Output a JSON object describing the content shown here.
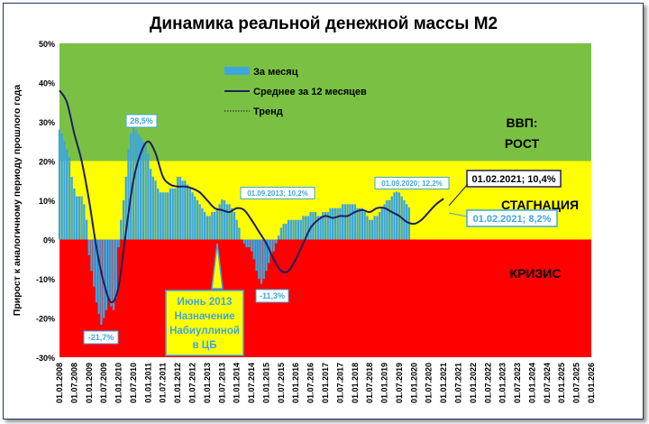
{
  "chart_data": {
    "type": "bar",
    "title": "Динамика реальной денежной массы М2",
    "ylabel": "Прирост к аналогичному периоду прошлого года",
    "xlabel": "",
    "ylim": [
      -30,
      50
    ],
    "yticks": [
      "-30%",
      "-20%",
      "-10%",
      "0%",
      "10%",
      "20%",
      "30%",
      "40%",
      "50%"
    ],
    "xticks": [
      "01.01.2008",
      "01.07.2008",
      "01.01.2009",
      "01.07.2009",
      "01.01.2010",
      "01.07.2010",
      "01.01.2011",
      "01.07.2011",
      "01.01.2012",
      "01.07.2012",
      "01.01.2013",
      "01.07.2013",
      "01.01.2014",
      "01.07.2014",
      "01.01.2015",
      "01.07.2015",
      "01.01.2016",
      "01.07.2016",
      "01.01.2017",
      "01.07.2017",
      "01.01.2018",
      "01.07.2018",
      "01.01.2019",
      "01.07.2019",
      "01.01.2020",
      "01.07.2020",
      "01.01.2021",
      "01.07.2021",
      "01.01.2022",
      "01.07.2022",
      "01.01.2023",
      "01.07.2023",
      "01.01.2024",
      "01.07.2024",
      "01.01.2025",
      "01.07.2025",
      "01.01.2026"
    ],
    "zones": [
      {
        "label": "ВВП:\nРОСТ",
        "from": 20,
        "to": 50,
        "color": "#7ac143"
      },
      {
        "label": "СТАГНАЦИЯ",
        "from": 0,
        "to": 20,
        "color": "#ffff00"
      },
      {
        "label": "КРИЗИС",
        "from": -30,
        "to": 0,
        "color": "#ff0000"
      }
    ],
    "series": [
      {
        "name": "За месяц",
        "kind": "bar",
        "color": "#3ea6dc",
        "start": "2008-01",
        "values": [
          28,
          27,
          25,
          23,
          21,
          16,
          13,
          11,
          11,
          11,
          9,
          5,
          -4,
          -8,
          -12,
          -16,
          -19,
          -21.7,
          -20,
          -18,
          -15,
          -17,
          -18,
          -15,
          -2,
          5,
          10,
          16,
          23,
          27,
          28.5,
          28,
          27,
          26,
          25,
          24,
          22,
          18,
          16,
          15,
          13,
          12,
          12,
          12,
          12,
          13,
          13,
          13,
          16,
          16,
          15,
          15,
          14,
          13,
          12,
          11,
          10,
          9,
          8,
          7,
          6,
          6,
          7,
          7,
          8,
          9,
          10.2,
          10,
          9,
          9,
          8,
          7,
          5,
          3,
          0,
          -1,
          -2,
          -2,
          -3,
          -5,
          -8,
          -10,
          -11.3,
          -10,
          -8,
          -6,
          -4,
          -3,
          -1,
          1,
          3,
          4,
          4,
          5,
          5,
          5,
          5,
          5,
          5,
          6,
          6,
          6,
          7,
          7,
          7,
          6,
          6,
          7,
          7,
          7,
          8,
          8,
          8,
          8,
          8,
          9,
          9,
          9,
          9,
          9,
          9,
          8,
          8,
          8,
          7,
          6,
          5,
          5,
          6,
          6,
          7,
          8,
          9,
          10,
          10,
          11,
          12,
          12.2,
          12,
          11,
          10,
          9,
          8.2
        ]
      },
      {
        "name": "Среднее за 12 месяцев",
        "kind": "line",
        "color": "#1f1f5f",
        "points": [
          [
            "2008-01",
            38
          ],
          [
            "2008-04",
            35
          ],
          [
            "2008-07",
            27
          ],
          [
            "2008-10",
            20
          ],
          [
            "2009-01",
            10
          ],
          [
            "2009-04",
            -2
          ],
          [
            "2009-07",
            -11
          ],
          [
            "2009-10",
            -16
          ],
          [
            "2010-01",
            -12
          ],
          [
            "2010-04",
            2
          ],
          [
            "2010-07",
            15
          ],
          [
            "2010-10",
            22
          ],
          [
            "2011-01",
            25
          ],
          [
            "2011-04",
            22
          ],
          [
            "2011-07",
            16
          ],
          [
            "2011-10",
            14
          ],
          [
            "2012-01",
            13.5
          ],
          [
            "2012-04",
            13.5
          ],
          [
            "2012-07",
            13
          ],
          [
            "2012-10",
            12
          ],
          [
            "2013-01",
            10
          ],
          [
            "2013-04",
            8
          ],
          [
            "2013-07",
            7.5
          ],
          [
            "2013-10",
            7
          ],
          [
            "2014-01",
            8
          ],
          [
            "2014-04",
            7.5
          ],
          [
            "2014-07",
            5
          ],
          [
            "2014-10",
            2
          ],
          [
            "2015-01",
            -1
          ],
          [
            "2015-04",
            -5
          ],
          [
            "2015-07",
            -8
          ],
          [
            "2015-10",
            -8
          ],
          [
            "2016-01",
            -5
          ],
          [
            "2016-04",
            -1
          ],
          [
            "2016-07",
            3
          ],
          [
            "2016-10",
            5
          ],
          [
            "2017-01",
            6
          ],
          [
            "2017-04",
            5.5
          ],
          [
            "2017-07",
            6
          ],
          [
            "2017-10",
            6
          ],
          [
            "2018-01",
            7
          ],
          [
            "2018-04",
            7.5
          ],
          [
            "2018-07",
            7
          ],
          [
            "2018-10",
            8
          ],
          [
            "2019-01",
            8
          ],
          [
            "2019-04",
            7
          ],
          [
            "2019-07",
            6
          ],
          [
            "2019-10",
            4.5
          ],
          [
            "2020-01",
            4
          ],
          [
            "2020-04",
            5
          ],
          [
            "2020-07",
            7
          ],
          [
            "2020-10",
            9
          ],
          [
            "2021-01",
            10.4
          ]
        ]
      },
      {
        "name": "Тренд",
        "kind": "dotted-line",
        "color": "#333333",
        "points": []
      }
    ],
    "legend": {
      "placement": "top-left",
      "items": [
        "За месяц",
        "Среднее за 12 месяцев",
        "Тренд"
      ]
    },
    "annotations": [
      {
        "text": "28,5%",
        "date": "2010-07",
        "value": 28.5
      },
      {
        "text": "-21,7%",
        "date": "2009-06",
        "value": -21.7
      },
      {
        "text": "01.09.2013; 10,2%",
        "date": "2013-09",
        "value": 10.2
      },
      {
        "text": "-11,3%",
        "date": "2015-07",
        "value": -11.3
      },
      {
        "text": "01.09.2020; 12,2%",
        "date": "2020-09",
        "value": 12.2
      },
      {
        "text": "01.02.2021; 10,4%",
        "date": "2021-02",
        "value": 10.4
      },
      {
        "text": "01.02.2021; 8,2%",
        "date": "2021-02",
        "value": 8.2
      },
      {
        "text": "Июнь 2013\nНазначение\nНабиуллиной\nв ЦБ",
        "date": "2013-06",
        "value": 0
      }
    ],
    "grid": false
  }
}
